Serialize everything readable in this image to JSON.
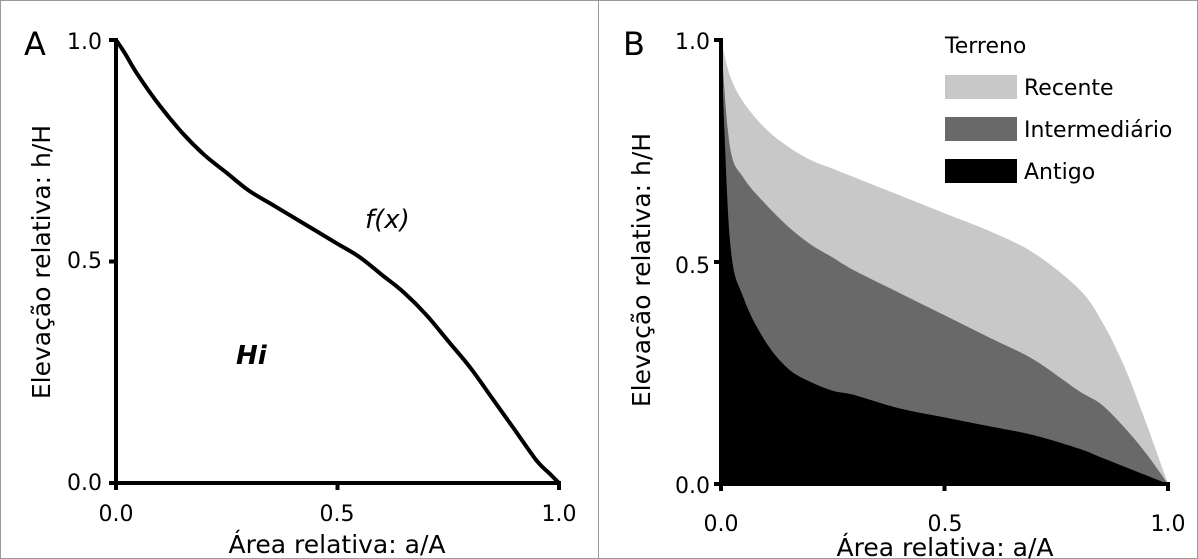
{
  "chart_data": [
    {
      "type": "area",
      "panel": "A",
      "xlabel": "Área relativa: a/A",
      "ylabel": "Elevação relativa: h/H",
      "xlim": [
        0,
        1
      ],
      "ylim": [
        0,
        1
      ],
      "xticks": [
        "0.0",
        "0.5",
        "1.0"
      ],
      "yticks": [
        "0.0",
        "0.5",
        "1.0"
      ],
      "curve_label": "f(x)",
      "area_label": "Hi",
      "series": [
        {
          "x": [
            0,
            0.02,
            0.05,
            0.1,
            0.15,
            0.2,
            0.25,
            0.3,
            0.35,
            0.4,
            0.45,
            0.5,
            0.55,
            0.6,
            0.65,
            0.7,
            0.75,
            0.8,
            0.85,
            0.9,
            0.95,
            0.98,
            1.0
          ],
          "values": [
            1.0,
            0.97,
            0.92,
            0.85,
            0.79,
            0.74,
            0.7,
            0.66,
            0.63,
            0.6,
            0.57,
            0.54,
            0.51,
            0.47,
            0.43,
            0.38,
            0.32,
            0.26,
            0.19,
            0.12,
            0.05,
            0.02,
            0.0
          ]
        }
      ]
    },
    {
      "type": "area",
      "panel": "B",
      "xlabel": "Área relativa: a/A",
      "ylabel": "Elevação relativa: h/H",
      "xlim": [
        0,
        1
      ],
      "ylim": [
        0,
        1
      ],
      "xticks": [
        "0.0",
        "0.5",
        "1.0"
      ],
      "yticks": [
        "0.0",
        "0.5",
        "1.0"
      ],
      "legend_title": "Terreno",
      "legend_position": "top-right",
      "x": [
        0,
        0.02,
        0.05,
        0.1,
        0.15,
        0.2,
        0.25,
        0.3,
        0.4,
        0.5,
        0.6,
        0.7,
        0.8,
        0.85,
        0.9,
        0.95,
        1.0
      ],
      "series": [
        {
          "name": "Recente",
          "color": "#c8c8c8",
          "values": [
            1.0,
            0.92,
            0.86,
            0.8,
            0.76,
            0.73,
            0.71,
            0.69,
            0.65,
            0.61,
            0.57,
            0.52,
            0.44,
            0.37,
            0.27,
            0.14,
            0.0
          ]
        },
        {
          "name": "Intermediário",
          "color": "#696969",
          "values": [
            1.0,
            0.76,
            0.69,
            0.63,
            0.58,
            0.54,
            0.51,
            0.48,
            0.43,
            0.38,
            0.33,
            0.28,
            0.21,
            0.18,
            0.13,
            0.07,
            0.0
          ]
        },
        {
          "name": "Antigo",
          "color": "#000000",
          "values": [
            1.0,
            0.55,
            0.42,
            0.32,
            0.26,
            0.23,
            0.21,
            0.2,
            0.17,
            0.15,
            0.13,
            0.11,
            0.08,
            0.06,
            0.04,
            0.02,
            0.0
          ]
        }
      ]
    }
  ]
}
